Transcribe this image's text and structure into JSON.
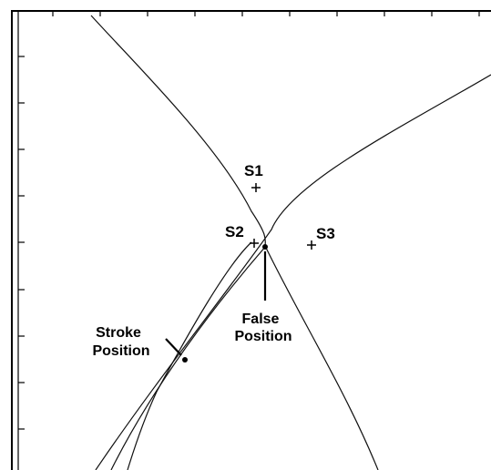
{
  "sensors": [
    {
      "label": "S1"
    },
    {
      "label": "S2"
    },
    {
      "label": "S3"
    }
  ],
  "annotations": {
    "stroke_position": [
      "Stroke",
      "Position"
    ],
    "false_position": [
      "False",
      "Position"
    ]
  },
  "colors": {
    "curve": "#111111",
    "frame": "#000000",
    "background": "#ffffff"
  }
}
